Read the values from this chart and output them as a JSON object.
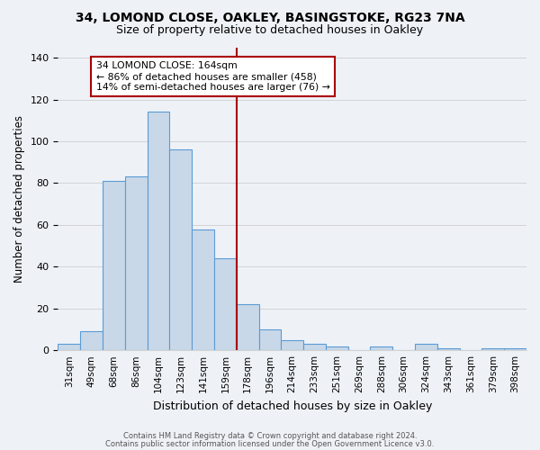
{
  "title1": "34, LOMOND CLOSE, OAKLEY, BASINGSTOKE, RG23 7NA",
  "title2": "Size of property relative to detached houses in Oakley",
  "xlabel": "Distribution of detached houses by size in Oakley",
  "ylabel": "Number of detached properties",
  "bar_labels": [
    "31sqm",
    "49sqm",
    "68sqm",
    "86sqm",
    "104sqm",
    "123sqm",
    "141sqm",
    "159sqm",
    "178sqm",
    "196sqm",
    "214sqm",
    "233sqm",
    "251sqm",
    "269sqm",
    "288sqm",
    "306sqm",
    "324sqm",
    "343sqm",
    "361sqm",
    "379sqm",
    "398sqm"
  ],
  "bar_values": [
    3,
    9,
    81,
    83,
    114,
    96,
    58,
    44,
    22,
    10,
    5,
    3,
    2,
    0,
    2,
    0,
    3,
    1,
    0,
    1,
    1
  ],
  "bar_color": "#c8d8e8",
  "bar_edge_color": "#5b9bd5",
  "vline_color": "#aa0000",
  "annotation_title": "34 LOMOND CLOSE: 164sqm",
  "annotation_line1": "← 86% of detached houses are smaller (458)",
  "annotation_line2": "14% of semi-detached houses are larger (76) →",
  "annotation_box_color": "#aa0000",
  "ylim": [
    0,
    145
  ],
  "yticks": [
    0,
    20,
    40,
    60,
    80,
    100,
    120,
    140
  ],
  "footer1": "Contains HM Land Registry data © Crown copyright and database right 2024.",
  "footer2": "Contains public sector information licensed under the Open Government Licence v3.0.",
  "bg_color": "#eef2f7"
}
